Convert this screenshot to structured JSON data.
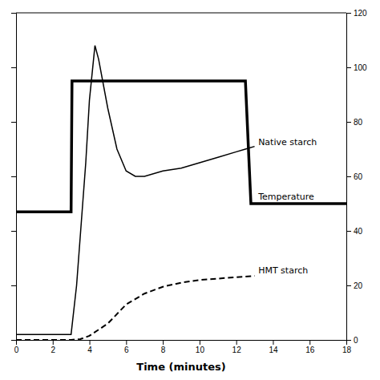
{
  "chart_data": {
    "type": "line",
    "x_label": "Time (minutes)",
    "xlim": [
      0,
      18
    ],
    "ylim": [
      0,
      120
    ],
    "xticks": [
      0,
      2,
      4,
      6,
      8,
      10,
      12,
      14,
      16,
      18
    ],
    "yticks": [
      0,
      20,
      40,
      60,
      80,
      100,
      120
    ],
    "grid": false,
    "series": [
      {
        "color": "#000000",
        "line_style": "solid",
        "x": [
          0,
          1.0,
          2.0,
          2.8,
          3.0,
          3.05,
          5.0,
          5.5,
          8.0,
          12.5,
          12.8,
          13.5,
          18.0
        ],
        "values": [
          47,
          47,
          47,
          47,
          47,
          95,
          95,
          95,
          95,
          95,
          50,
          50,
          50
        ]
      },
      {
        "color": "#000000",
        "line_style": "solid",
        "x": [
          0,
          0.5,
          1.0,
          2.0,
          2.8,
          3.0,
          3.3,
          3.8,
          4.0,
          4.3,
          4.5,
          5.0,
          5.5,
          6.0,
          6.5,
          7.0,
          8.0,
          9.0,
          10.0,
          11.0,
          12.0,
          12.5,
          13.0
        ],
        "values": [
          2,
          2,
          2,
          2,
          2,
          2,
          20,
          65,
          88,
          108,
          103,
          85,
          70,
          62,
          60,
          60,
          62,
          63,
          65,
          67,
          69,
          70,
          71
        ]
      },
      {
        "color": "#000000",
        "line_style": "dashed",
        "x": [
          0,
          1.0,
          2.0,
          2.5,
          3.0,
          3.5,
          4.0,
          5.0,
          6.0,
          7.0,
          8.0,
          9.0,
          10.0,
          11.0,
          12.0,
          12.5,
          13.0
        ],
        "values": [
          0,
          0,
          0,
          0,
          0,
          0.3,
          1.5,
          6,
          13,
          17,
          19.5,
          21,
          22,
          22.5,
          23,
          23.2,
          23.5
        ]
      }
    ],
    "annotations": [
      {
        "text": "Native starch",
        "x": 13.2,
        "y": 70
      },
      {
        "text": "Temperature",
        "x": 13.2,
        "y": 50
      },
      {
        "text": "HMT starch",
        "x": 13.2,
        "y": 23
      }
    ]
  }
}
